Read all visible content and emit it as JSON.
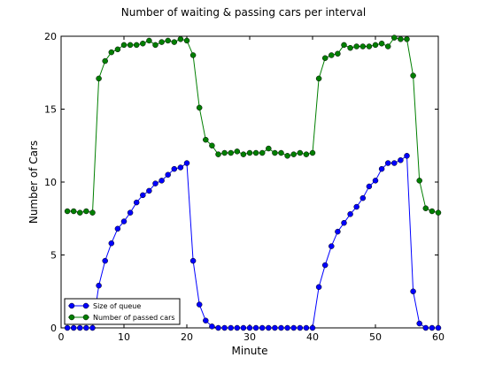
{
  "chart_data": {
    "type": "line",
    "title": "Number of waiting & passing cars per interval",
    "xlabel": "Minute",
    "ylabel": "Number of Cars",
    "xlim": [
      0,
      60
    ],
    "ylim": [
      0,
      20
    ],
    "xticks": [
      0,
      10,
      20,
      30,
      40,
      50,
      60
    ],
    "yticks": [
      0,
      5,
      10,
      15,
      20
    ],
    "grid": false,
    "legend_position": "lower-left",
    "x": [
      1,
      2,
      3,
      4,
      5,
      6,
      7,
      8,
      9,
      10,
      11,
      12,
      13,
      14,
      15,
      16,
      17,
      18,
      19,
      20,
      21,
      22,
      23,
      24,
      25,
      26,
      27,
      28,
      29,
      30,
      31,
      32,
      33,
      34,
      35,
      36,
      37,
      38,
      39,
      40,
      41,
      42,
      43,
      44,
      45,
      46,
      47,
      48,
      49,
      50,
      51,
      52,
      53,
      54,
      55,
      56,
      57,
      58,
      59,
      60
    ],
    "series": [
      {
        "name": "Size of queue",
        "color": "#0000ff",
        "values": [
          0,
          0,
          0,
          0,
          0,
          2.9,
          4.6,
          5.8,
          6.8,
          7.3,
          7.9,
          8.6,
          9.1,
          9.4,
          9.9,
          10.1,
          10.5,
          10.9,
          11.0,
          11.3,
          4.6,
          1.6,
          0.5,
          0.1,
          0,
          0,
          0,
          0,
          0,
          0,
          0,
          0,
          0,
          0,
          0,
          0,
          0,
          0,
          0,
          0,
          2.8,
          4.3,
          5.6,
          6.6,
          7.2,
          7.8,
          8.3,
          8.9,
          9.7,
          10.1,
          10.9,
          11.3,
          11.3,
          11.5,
          11.8,
          2.5,
          0.3,
          0,
          0,
          0
        ]
      },
      {
        "name": "Number of passed cars",
        "color": "#007f00",
        "values": [
          8.0,
          8.0,
          7.9,
          8.0,
          7.9,
          17.1,
          18.3,
          18.9,
          19.1,
          19.4,
          19.4,
          19.4,
          19.5,
          19.7,
          19.4,
          19.6,
          19.7,
          19.6,
          19.8,
          19.7,
          18.7,
          15.1,
          12.9,
          12.5,
          11.9,
          12.0,
          12.0,
          12.1,
          11.9,
          12.0,
          12.0,
          12.0,
          12.3,
          12.0,
          12.0,
          11.8,
          11.9,
          12.0,
          11.9,
          12.0,
          17.1,
          18.5,
          18.7,
          18.8,
          19.4,
          19.2,
          19.3,
          19.3,
          19.3,
          19.4,
          19.5,
          19.3,
          19.9,
          19.8,
          19.8,
          17.3,
          10.1,
          8.2,
          8.0,
          7.9
        ]
      }
    ]
  }
}
